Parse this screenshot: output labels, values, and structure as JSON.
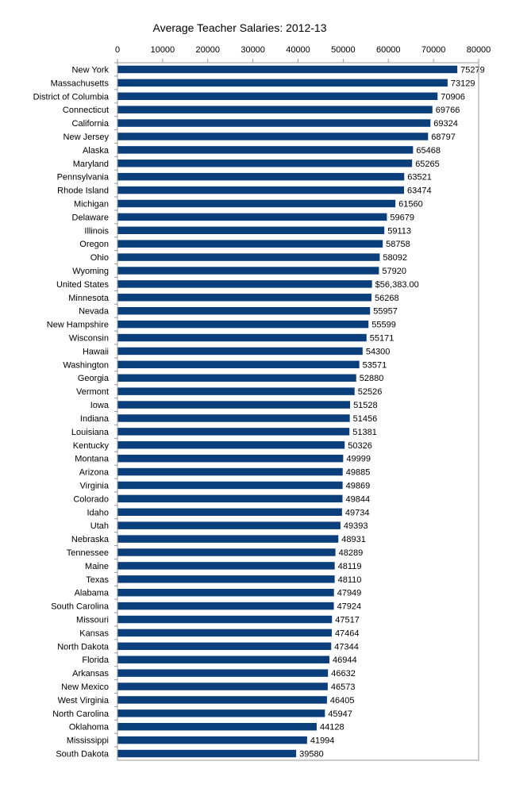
{
  "chart_data": {
    "type": "bar",
    "orientation": "horizontal",
    "title": "Average Teacher Salaries: 2012-13",
    "xlabel": "",
    "ylabel": "",
    "xlim": [
      0,
      80000
    ],
    "x_ticks": [
      "0",
      "10000",
      "20000",
      "30000",
      "40000",
      "50000",
      "60000",
      "70000",
      "80000"
    ],
    "x_axis_position": "top",
    "grid": false,
    "legend": "none",
    "bar_color": "#0b3f7c",
    "categories": [
      "New York",
      "Massachusetts",
      "District of Columbia",
      "Connecticut",
      "California",
      "New Jersey",
      "Alaska",
      "Maryland",
      "Pennsylvania",
      "Rhode Island",
      "Michigan",
      "Delaware",
      "Illinois",
      "Oregon",
      "Ohio",
      "Wyoming",
      "United States",
      "Minnesota",
      "Nevada",
      "New Hampshire",
      "Wisconsin",
      "Hawaii",
      "Washington",
      "Georgia",
      "Vermont",
      "Iowa",
      "Indiana",
      "Louisiana",
      "Kentucky",
      "Montana",
      "Arizona",
      "Virginia",
      "Colorado",
      "Idaho",
      "Utah",
      "Nebraska",
      "Tennessee",
      "Maine",
      "Texas",
      "Alabama",
      "South Carolina",
      "Missouri",
      "Kansas",
      "North Dakota",
      "Florida",
      "Arkansas",
      "New Mexico",
      "West Virginia",
      "North Carolina",
      "Oklahoma",
      "Mississippi",
      "South Dakota"
    ],
    "values": [
      75279,
      73129,
      70906,
      69766,
      69324,
      68797,
      65468,
      65265,
      63521,
      63474,
      61560,
      59679,
      59113,
      58758,
      58092,
      57920,
      56383,
      56268,
      55957,
      55599,
      55171,
      54300,
      53571,
      52880,
      52526,
      51528,
      51456,
      51381,
      50326,
      49999,
      49885,
      49869,
      49844,
      49734,
      49393,
      48931,
      48289,
      48119,
      48110,
      47949,
      47924,
      47517,
      47464,
      47344,
      46944,
      46632,
      46573,
      46405,
      45947,
      44128,
      41994,
      39580
    ],
    "data_labels": [
      "75279",
      "73129",
      "70906",
      "69766",
      "69324",
      "68797",
      "65468",
      "65265",
      "63521",
      "63474",
      "61560",
      "59679",
      "59113",
      "58758",
      "58092",
      "57920",
      "$56,383.00",
      "56268",
      "55957",
      "55599",
      "55171",
      "54300",
      "53571",
      "52880",
      "52526",
      "51528",
      "51456",
      "51381",
      "50326",
      "49999",
      "49885",
      "49869",
      "49844",
      "49734",
      "49393",
      "48931",
      "48289",
      "48119",
      "48110",
      "47949",
      "47924",
      "47517",
      "47464",
      "47344",
      "46944",
      "46632",
      "46573",
      "46405",
      "45947",
      "44128",
      "41994",
      "39580"
    ]
  }
}
